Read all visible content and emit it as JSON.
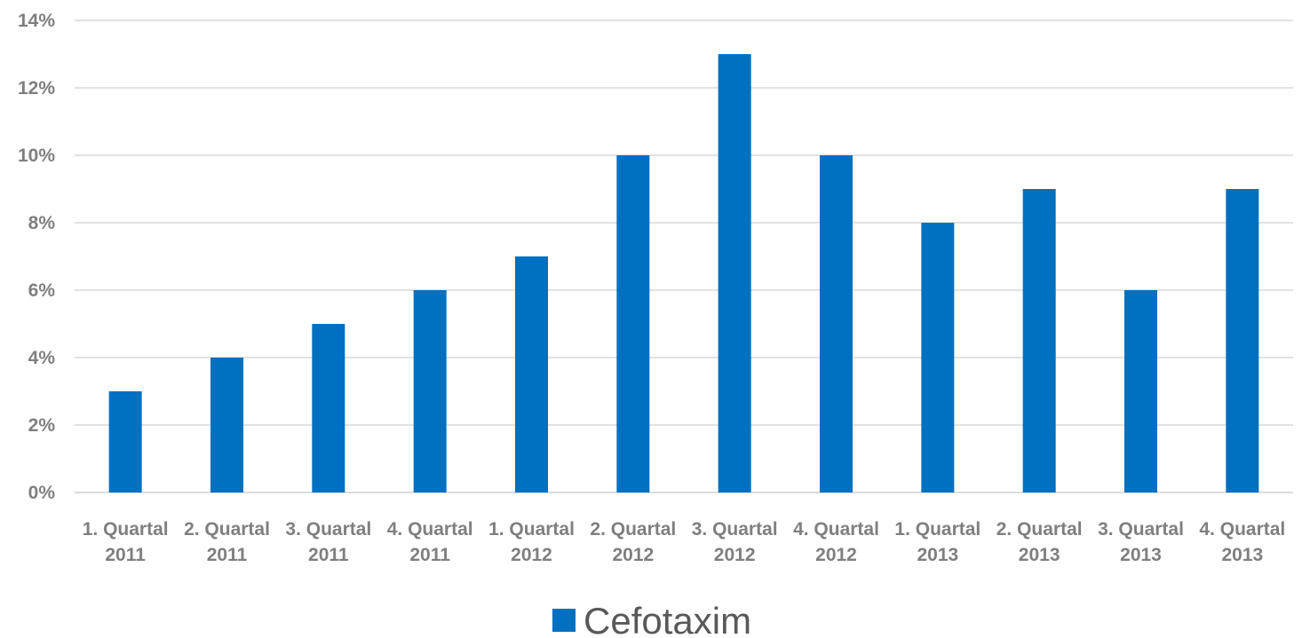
{
  "chart_data": {
    "type": "bar",
    "categories": [
      [
        "1. Quartal",
        "2011"
      ],
      [
        "2. Quartal",
        "2011"
      ],
      [
        "3. Quartal",
        "2011"
      ],
      [
        "4. Quartal",
        "2011"
      ],
      [
        "1. Quartal",
        "2012"
      ],
      [
        "2. Quartal",
        "2012"
      ],
      [
        "3. Quartal",
        "2012"
      ],
      [
        "4. Quartal",
        "2012"
      ],
      [
        "1. Quartal",
        "2013"
      ],
      [
        "2. Quartal",
        "2013"
      ],
      [
        "3. Quartal",
        "2013"
      ],
      [
        "4. Quartal",
        "2013"
      ]
    ],
    "series": [
      {
        "name": "Cefotaxim",
        "color": "#0070c0",
        "values": [
          3,
          4,
          5,
          6,
          7,
          10,
          13,
          10,
          8,
          9,
          6,
          9
        ]
      }
    ],
    "ylim": [
      0,
      14
    ],
    "yticks": [
      0,
      2,
      4,
      6,
      8,
      10,
      12,
      14
    ],
    "ytick_labels": [
      "0%",
      "2%",
      "4%",
      "6%",
      "8%",
      "10%",
      "12%",
      "14%"
    ],
    "grid": true,
    "legend_position": "bottom"
  }
}
